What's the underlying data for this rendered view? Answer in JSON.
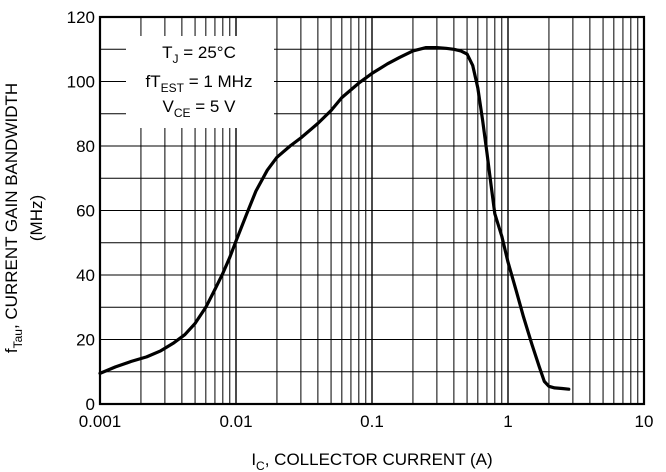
{
  "chart_data": {
    "type": "line",
    "x_scale": "log",
    "y_scale": "linear",
    "xlim": [
      0.001,
      10
    ],
    "ylim": [
      0,
      120
    ],
    "grid": true,
    "x_ticks": [
      {
        "value": 0.001,
        "label": "0.001"
      },
      {
        "value": 0.01,
        "label": "0.01"
      },
      {
        "value": 0.1,
        "label": "0.1"
      },
      {
        "value": 1,
        "label": "1"
      },
      {
        "value": 10,
        "label": "10"
      }
    ],
    "y_ticks": [
      {
        "value": 0,
        "label": "0"
      },
      {
        "value": 20,
        "label": "20"
      },
      {
        "value": 40,
        "label": "40"
      },
      {
        "value": 60,
        "label": "60"
      },
      {
        "value": 80,
        "label": "80"
      },
      {
        "value": 100,
        "label": "100"
      },
      {
        "value": 120,
        "label": "120"
      }
    ],
    "xlabel": {
      "prefix": "I",
      "sub": "C",
      "suffix": ", COLLECTOR CURRENT (A)"
    },
    "ylabel": {
      "line1_prefix": "f",
      "line1_sub": "Tau",
      "line1_suffix": ", CURRENT GAIN BANDWIDTH",
      "line2": "(MHz)"
    },
    "annotation": [
      {
        "prefix": "T",
        "sub": "J",
        "suffix": " = 25°C"
      },
      {
        "prefix": "fT",
        "sub": "EST",
        "suffix": " = 1 MHz"
      },
      {
        "prefix": "V",
        "sub": "CE",
        "suffix": " = 5 V"
      }
    ],
    "series": [
      {
        "x": [
          0.001,
          0.0013,
          0.0017,
          0.0022,
          0.0028,
          0.0035,
          0.0042,
          0.005,
          0.006,
          0.007,
          0.008,
          0.009,
          0.01,
          0.012,
          0.014,
          0.017,
          0.02,
          0.025,
          0.03,
          0.04,
          0.05,
          0.06,
          0.08,
          0.1,
          0.13,
          0.16,
          0.2,
          0.25,
          0.3,
          0.35,
          0.4,
          0.45,
          0.5,
          0.55,
          0.6,
          0.65,
          0.7,
          0.75,
          0.8,
          0.9,
          1.0,
          1.15,
          1.3,
          1.5,
          1.7,
          1.85,
          2.0,
          2.2,
          2.5,
          2.8
        ],
        "y": [
          9.5,
          11.5,
          13.2,
          14.6,
          16.5,
          19.0,
          21.5,
          25.0,
          30.0,
          35.5,
          40.5,
          45.5,
          50.5,
          59.0,
          66.0,
          72.5,
          76.5,
          80.0,
          82.5,
          87.0,
          91.0,
          95.0,
          99.5,
          102.5,
          105.5,
          107.5,
          109.5,
          110.5,
          110.5,
          110.3,
          110.0,
          109.5,
          108.5,
          105.0,
          98.0,
          88.0,
          78.0,
          68.0,
          59.0,
          52.0,
          44.0,
          35.0,
          27.0,
          18.5,
          11.5,
          7.0,
          5.5,
          5.0,
          4.8,
          4.6
        ]
      }
    ],
    "line_color": "#000000",
    "grid_color": "#000000"
  }
}
